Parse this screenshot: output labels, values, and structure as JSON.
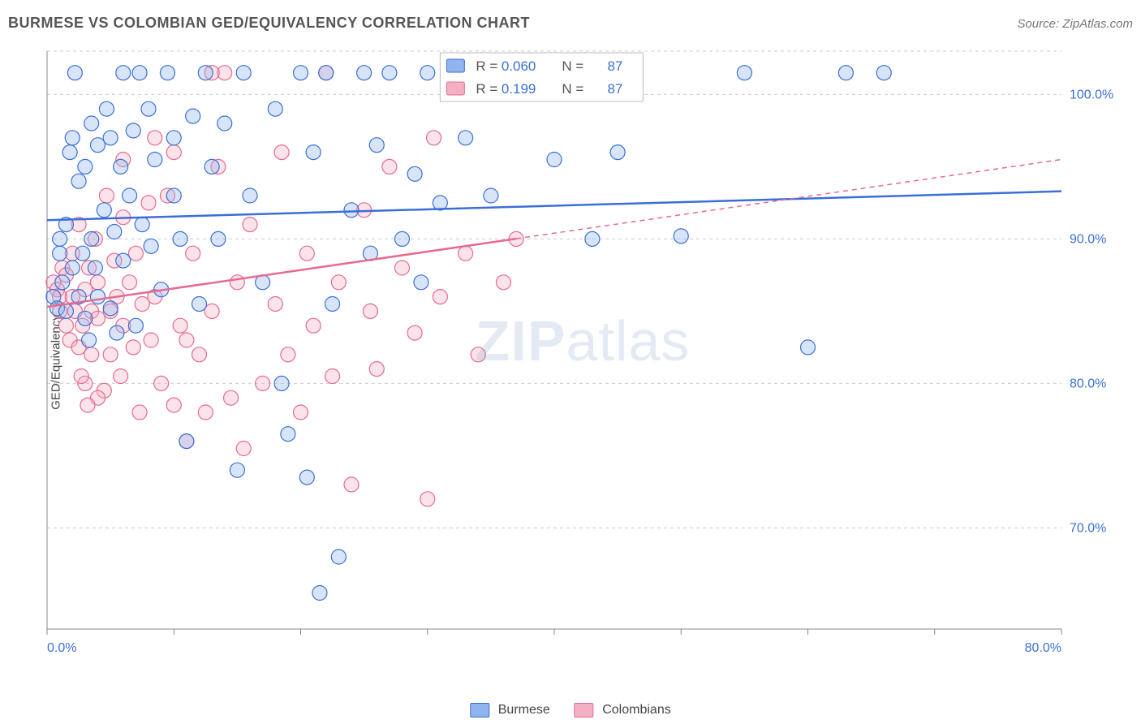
{
  "header": {
    "title": "BURMESE VS COLOMBIAN GED/EQUIVALENCY CORRELATION CHART",
    "source_prefix": "Source: ",
    "source_name": "ZipAtlas.com"
  },
  "watermark": {
    "bold": "ZIP",
    "rest": "atlas"
  },
  "chart": {
    "type": "scatter",
    "y_label": "GED/Equivalency",
    "xlim": [
      0,
      80
    ],
    "ylim": [
      63,
      103
    ],
    "x_ticks": [
      0,
      10,
      20,
      30,
      40,
      50,
      60,
      70,
      80
    ],
    "x_tick_labels_shown": {
      "0": "0.0%",
      "80": "80.0%"
    },
    "y_ticks": [
      70,
      80,
      90,
      100
    ],
    "y_tick_labels": {
      "70": "70.0%",
      "80": "80.0%",
      "90": "90.0%",
      "100": "100.0%"
    },
    "background_color": "#ffffff",
    "grid_color": "#cccccc",
    "axis_color": "#888888",
    "tick_label_color": "#3b6fd6",
    "marker_radius": 9,
    "marker_fill_opacity": 0.35,
    "series": {
      "burmese": {
        "label": "Burmese",
        "color_stroke": "#3b6fd6",
        "color_fill": "#8fb4ef",
        "R": "0.060",
        "N": "87",
        "trend": {
          "x0": 0,
          "y0": 91.3,
          "x1": 80,
          "y1": 93.3,
          "solid_until_x": 80
        },
        "points": [
          [
            0.5,
            86
          ],
          [
            0.8,
            85.2
          ],
          [
            1,
            90
          ],
          [
            1,
            89
          ],
          [
            1.2,
            87
          ],
          [
            1.5,
            91
          ],
          [
            1.5,
            85
          ],
          [
            1.8,
            96
          ],
          [
            2,
            88
          ],
          [
            2,
            97
          ],
          [
            2.2,
            101.5
          ],
          [
            2.5,
            94
          ],
          [
            2.5,
            86
          ],
          [
            2.8,
            89
          ],
          [
            3,
            84.5
          ],
          [
            3,
            95
          ],
          [
            3.3,
            83
          ],
          [
            3.5,
            98
          ],
          [
            3.5,
            90
          ],
          [
            3.8,
            88
          ],
          [
            4,
            96.5
          ],
          [
            4,
            86
          ],
          [
            4.5,
            92
          ],
          [
            4.7,
            99
          ],
          [
            5,
            85.2
          ],
          [
            5,
            97
          ],
          [
            5.3,
            90.5
          ],
          [
            5.5,
            83.5
          ],
          [
            5.8,
            95
          ],
          [
            6,
            101.5
          ],
          [
            6,
            88.5
          ],
          [
            6.5,
            93
          ],
          [
            6.8,
            97.5
          ],
          [
            7,
            84
          ],
          [
            7.3,
            101.5
          ],
          [
            7.5,
            91
          ],
          [
            8,
            99
          ],
          [
            8.2,
            89.5
          ],
          [
            8.5,
            95.5
          ],
          [
            9,
            86.5
          ],
          [
            9.5,
            101.5
          ],
          [
            10,
            97
          ],
          [
            10,
            93
          ],
          [
            10.5,
            90
          ],
          [
            11,
            76
          ],
          [
            11.5,
            98.5
          ],
          [
            12,
            85.5
          ],
          [
            12.5,
            101.5
          ],
          [
            13,
            95
          ],
          [
            13.5,
            90
          ],
          [
            14,
            98
          ],
          [
            15,
            74
          ],
          [
            15.5,
            101.5
          ],
          [
            16,
            93
          ],
          [
            17,
            87
          ],
          [
            18,
            99
          ],
          [
            18.5,
            80
          ],
          [
            19,
            76.5
          ],
          [
            20,
            101.5
          ],
          [
            20.5,
            73.5
          ],
          [
            21,
            96
          ],
          [
            21.5,
            65.5
          ],
          [
            22,
            101.5
          ],
          [
            22.5,
            85.5
          ],
          [
            23,
            68
          ],
          [
            24,
            92
          ],
          [
            25,
            101.5
          ],
          [
            25.5,
            89
          ],
          [
            26,
            96.5
          ],
          [
            27,
            101.5
          ],
          [
            28,
            90
          ],
          [
            29,
            94.5
          ],
          [
            29.5,
            87
          ],
          [
            30,
            101.5
          ],
          [
            31,
            92.5
          ],
          [
            33,
            97
          ],
          [
            34,
            101.5
          ],
          [
            35,
            93
          ],
          [
            37,
            101.5
          ],
          [
            40,
            95.5
          ],
          [
            43,
            90
          ],
          [
            45,
            96
          ],
          [
            50,
            90.2
          ],
          [
            55,
            101.5
          ],
          [
            60,
            82.5
          ],
          [
            63,
            101.5
          ],
          [
            66,
            101.5
          ]
        ]
      },
      "colombians": {
        "label": "Colombians",
        "color_stroke": "#e66a8f",
        "color_fill": "#f4b0c3",
        "R": "0.199",
        "N": "87",
        "trend": {
          "x0": 0,
          "y0": 85.3,
          "x1": 80,
          "y1": 95.5,
          "solid_until_x": 37
        },
        "points": [
          [
            0.5,
            87
          ],
          [
            0.8,
            86.5
          ],
          [
            1,
            86
          ],
          [
            1,
            85
          ],
          [
            1.2,
            88
          ],
          [
            1.5,
            84
          ],
          [
            1.5,
            87.5
          ],
          [
            1.8,
            83
          ],
          [
            2,
            86
          ],
          [
            2,
            89
          ],
          [
            2.2,
            85
          ],
          [
            2.5,
            82.5
          ],
          [
            2.5,
            91
          ],
          [
            2.8,
            84
          ],
          [
            3,
            86.5
          ],
          [
            3,
            80
          ],
          [
            3.3,
            88
          ],
          [
            3.5,
            85
          ],
          [
            3.5,
            82
          ],
          [
            3.8,
            90
          ],
          [
            4,
            84.5
          ],
          [
            4,
            87
          ],
          [
            4.5,
            79.5
          ],
          [
            4.7,
            93
          ],
          [
            5,
            85
          ],
          [
            5,
            82
          ],
          [
            5.3,
            88.5
          ],
          [
            5.5,
            86
          ],
          [
            5.8,
            80.5
          ],
          [
            6,
            91.5
          ],
          [
            6,
            84
          ],
          [
            6.5,
            87
          ],
          [
            6.8,
            82.5
          ],
          [
            7,
            89
          ],
          [
            7.3,
            78
          ],
          [
            7.5,
            85.5
          ],
          [
            8,
            92.5
          ],
          [
            8.2,
            83
          ],
          [
            8.5,
            86
          ],
          [
            9,
            80
          ],
          [
            9.5,
            93
          ],
          [
            10,
            78.5
          ],
          [
            10,
            96
          ],
          [
            10.5,
            84
          ],
          [
            11,
            76
          ],
          [
            11.5,
            89
          ],
          [
            12,
            82
          ],
          [
            12.5,
            78
          ],
          [
            13,
            85
          ],
          [
            13.5,
            95
          ],
          [
            14,
            101.5
          ],
          [
            14.5,
            79
          ],
          [
            15,
            87
          ],
          [
            15.5,
            75.5
          ],
          [
            16,
            91
          ],
          [
            17,
            80
          ],
          [
            18,
            85.5
          ],
          [
            18.5,
            96
          ],
          [
            19,
            82
          ],
          [
            20,
            78
          ],
          [
            20.5,
            89
          ],
          [
            21,
            84
          ],
          [
            22,
            101.5
          ],
          [
            22.5,
            80.5
          ],
          [
            23,
            87
          ],
          [
            24,
            73
          ],
          [
            25,
            92
          ],
          [
            25.5,
            85
          ],
          [
            26,
            81
          ],
          [
            27,
            95
          ],
          [
            28,
            88
          ],
          [
            29,
            83.5
          ],
          [
            30,
            72
          ],
          [
            30.5,
            97
          ],
          [
            31,
            86
          ],
          [
            33,
            89
          ],
          [
            34,
            82
          ],
          [
            35,
            101.5
          ],
          [
            36,
            87
          ],
          [
            37,
            90
          ],
          [
            13,
            101.5
          ],
          [
            6,
            95.5
          ],
          [
            8.5,
            97
          ],
          [
            4,
            79
          ],
          [
            2.7,
            80.5
          ],
          [
            3.2,
            78.5
          ],
          [
            11,
            83
          ]
        ]
      }
    },
    "legend_top": {
      "border_color": "#bbbbbb",
      "fill": "#ffffff",
      "text_color": "#555555",
      "value_color": "#3b6fd6",
      "R_label": "R =",
      "N_label": "N ="
    },
    "legend_bottom": {
      "items": [
        "burmese",
        "colombians"
      ]
    }
  }
}
